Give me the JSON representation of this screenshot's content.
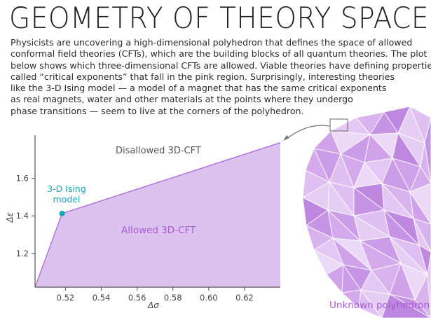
{
  "title": "GEOMETRY OF THEORY SPACE",
  "intro_lines": [
    "Physicists are uncovering a high-dimensional polyhedron that defines the space of allowed",
    "conformal field theories (CFTs), which are the building blocks of all quantum theories. The plot",
    "below shows which three-dimensional CFTs are allowed. Viable theories have defining properties",
    "called “critical exponents” that fall in the pink region. Surprisingly, interesting theories",
    "like the 3-D Ising model — a model of a magnet that has the same critical exponents",
    "as real magnets, water and other materials at the points where they undergo",
    "phase transitions — seem to live at the corners of the polyhedron."
  ],
  "colors": {
    "region_fill": "#dcc3ef",
    "region_edge": "#b06fd8",
    "allowed_label": "#a65ad6",
    "ising": "#13a9b6",
    "axis": "#555555"
  },
  "chart_data": {
    "type": "area",
    "xlabel": "Δσ",
    "ylabel": "Δε",
    "xlim": [
      0.503,
      0.64
    ],
    "ylim": [
      1.02,
      1.83
    ],
    "x_ticks": [
      0.52,
      0.54,
      0.56,
      0.58,
      0.6,
      0.62
    ],
    "x_tick_labels": [
      "0.52",
      "0.54",
      "0.56",
      "0.58",
      "0.60",
      "0.62"
    ],
    "y_ticks": [
      1.2,
      1.4,
      1.6
    ],
    "y_tick_labels": [
      "1.2",
      "1.4",
      "1.6"
    ],
    "boundary": [
      [
        0.503,
        1.02
      ],
      [
        0.5181,
        1.4126
      ],
      [
        0.64,
        1.79
      ],
      [
        0.64,
        1.02
      ]
    ],
    "regions": {
      "allowed": "Allowed 3D-CFT",
      "disallowed": "Disallowed 3D-CFT"
    },
    "point": {
      "label_line1": "3-D Ising",
      "label_line2": "model",
      "x": 0.5181,
      "y": 1.4126
    },
    "grid": false
  },
  "polyhedron_label": "Unknown polyhedron"
}
